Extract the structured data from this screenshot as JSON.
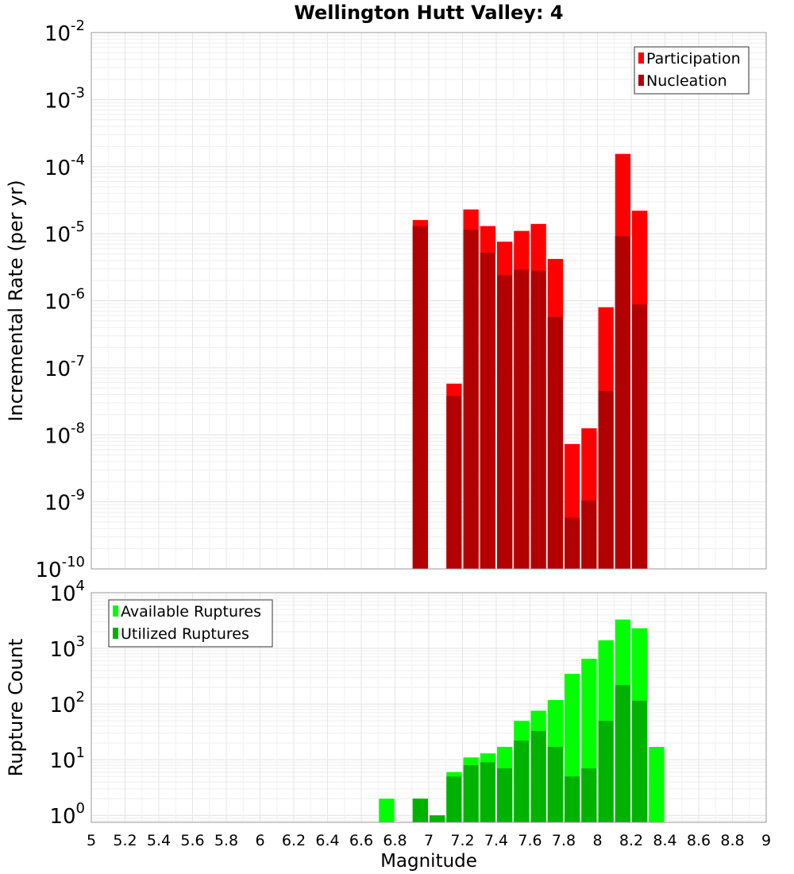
{
  "chart_data": [
    {
      "type": "bar",
      "title": "Wellington Hutt Valley: 4",
      "ylabel": "Incremental Rate (per yr)",
      "xlabel": "",
      "xlim": [
        5,
        9
      ],
      "ylim": [
        1e-10,
        0.01
      ],
      "y_scale": "log",
      "bar_width": 0.1,
      "grid": true,
      "legend_position": "top-right",
      "x": [
        6.95,
        7.15,
        7.25,
        7.35,
        7.45,
        7.55,
        7.65,
        7.75,
        7.85,
        7.95,
        8.05,
        8.15,
        8.25
      ],
      "series": [
        {
          "name": "Participation",
          "color": "#ff0000",
          "values": [
            1.6e-05,
            5.8e-08,
            2.3e-05,
            1.3e-05,
            7.6e-06,
            1.1e-05,
            1.4e-05,
            4.2e-06,
            7.3e-09,
            1.25e-08,
            8e-07,
            0.000155,
            2.2e-05
          ]
        },
        {
          "name": "Nucleation",
          "color": "#b20000",
          "values": [
            1.3e-05,
            3.8e-08,
            1.15e-05,
            5.2e-06,
            2.4e-06,
            2.9e-06,
            2.8e-06,
            5.7e-07,
            5.8e-10,
            1.04e-09,
            4.5e-08,
            9.2e-06,
            8.8e-07
          ]
        }
      ]
    },
    {
      "type": "bar",
      "title": "",
      "ylabel": "Rupture Count",
      "xlabel": "Magnitude",
      "xlim": [
        5,
        9
      ],
      "ylim": [
        0.75,
        10000
      ],
      "y_scale": "log",
      "bar_width": 0.1,
      "grid": true,
      "legend_position": "top-left",
      "x_ticks": [
        "5",
        "5.2",
        "5.4",
        "5.6",
        "5.8",
        "6",
        "6.2",
        "6.4",
        "6.6",
        "6.8",
        "7",
        "7.2",
        "7.4",
        "7.6",
        "7.8",
        "8",
        "8.2",
        "8.4",
        "8.6",
        "8.8",
        "9"
      ],
      "x": [
        6.75,
        6.95,
        7.05,
        7.15,
        7.25,
        7.35,
        7.45,
        7.55,
        7.65,
        7.75,
        7.85,
        7.95,
        8.05,
        8.15,
        8.25,
        8.35
      ],
      "series": [
        {
          "name": "Available Ruptures",
          "color": "#00ff00",
          "values": [
            2,
            2,
            1,
            6,
            11,
            13,
            17,
            50,
            76,
            118,
            350,
            650,
            1400,
            3300,
            2300,
            17
          ]
        },
        {
          "name": "Utilized Ruptures",
          "color": "#00b200",
          "values": [
            0,
            2,
            1,
            5,
            8,
            9,
            7,
            22,
            33,
            17,
            5,
            7,
            50,
            220,
            115,
            0
          ]
        }
      ]
    }
  ]
}
